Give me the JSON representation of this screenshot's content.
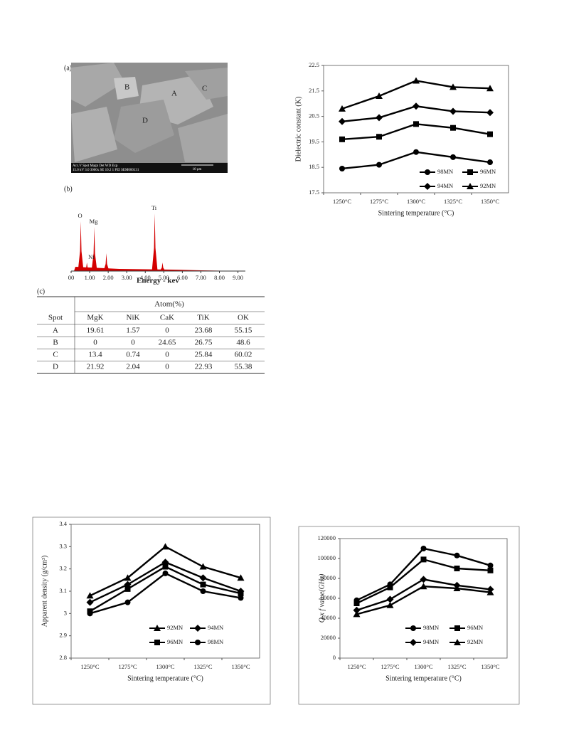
{
  "figure_labels": [
    "(a)",
    "(b)",
    "(c)"
  ],
  "sem_image": {
    "labels": [
      "A",
      "B",
      "C",
      "D"
    ],
    "info": [
      "Acc.V  Spot Magn   Det  WD  Exp",
      "15.0 kV 3.0  3000x   SE  10.2  1   FEI SEM000131"
    ],
    "scale_bar": "10 μm"
  },
  "table": {
    "group_header": "Atom(%)",
    "columns": [
      "Spot",
      "MgK",
      "NiK",
      "CaK",
      "TiK",
      "OK"
    ],
    "rows": [
      [
        "A",
        "19.61",
        "1.57",
        "0",
        "23.68",
        "55.15"
      ],
      [
        "B",
        "0",
        "0",
        "24.65",
        "26.75",
        "48.6"
      ],
      [
        "C",
        "13.4",
        "0.74",
        "0",
        "25.84",
        "60.02"
      ],
      [
        "D",
        "21.92",
        "2.04",
        "0",
        "22.93",
        "55.38"
      ]
    ]
  },
  "chart_data": [
    {
      "type": "spectrum",
      "xlabel": "Energy - kev",
      "color": "#d40000",
      "x": [
        0.52,
        0.85,
        1.25,
        1.9,
        4.51,
        4.93
      ],
      "values": [
        70,
        12,
        62,
        25,
        81,
        12
      ],
      "annotations": [
        {
          "text": "O",
          "x": 0.52
        },
        {
          "text": "Ni",
          "x": 0.85
        },
        {
          "text": "Mg",
          "x": 1.25
        },
        {
          "text": "Ti",
          "x": 4.51
        }
      ],
      "xlim": [
        0,
        9.4
      ],
      "xticks": [
        {
          "value": 0,
          "label": "00"
        },
        {
          "value": 1,
          "label": "1.00"
        },
        {
          "value": 2,
          "label": "2.00"
        },
        {
          "value": 3,
          "label": "3.00"
        },
        {
          "value": 4,
          "label": "4.00"
        },
        {
          "value": 5,
          "label": "5.00"
        },
        {
          "value": 6,
          "label": "6.00"
        },
        {
          "value": 7,
          "label": "7.00"
        },
        {
          "value": 8,
          "label": "8.00"
        },
        {
          "value": 9,
          "label": "9.00"
        }
      ]
    },
    {
      "type": "line",
      "xlabel": "Sintering temperature (°C)",
      "ylabel": "Dielectric constant (K)",
      "categories": [
        "1250°C",
        "1275°C",
        "1300°C",
        "1325°C",
        "1350°C"
      ],
      "series": [
        {
          "name": "98MN",
          "marker": "circle",
          "color": "#000000",
          "values": [
            18.45,
            18.6,
            19.1,
            18.9,
            18.7
          ]
        },
        {
          "name": "96MN",
          "marker": "square",
          "color": "#000000",
          "values": [
            19.6,
            19.7,
            20.2,
            20.05,
            19.8
          ]
        },
        {
          "name": "94MN",
          "marker": "diamond",
          "color": "#000000",
          "values": [
            20.3,
            20.45,
            20.9,
            20.7,
            20.65
          ]
        },
        {
          "name": "92MN",
          "marker": "triangle",
          "color": "#000000",
          "values": [
            20.8,
            21.3,
            21.9,
            21.65,
            21.6
          ]
        }
      ],
      "ylim": [
        17.5,
        22.5
      ],
      "yticks": [
        17.5,
        18.5,
        19.5,
        20.5,
        21.5,
        22.5
      ],
      "legend": "lower right"
    },
    {
      "type": "line",
      "xlabel": "Sintering temperature (°C)",
      "ylabel": "Apparent density (g/cm³)",
      "categories": [
        "1250°C",
        "1275°C",
        "1300°C",
        "1325°C",
        "1350°C"
      ],
      "series": [
        {
          "name": "92MN",
          "marker": "triangle",
          "color": "#000000",
          "values": [
            3.08,
            3.16,
            3.3,
            3.21,
            3.16
          ]
        },
        {
          "name": "94MN",
          "marker": "diamond",
          "color": "#000000",
          "values": [
            3.05,
            3.13,
            3.23,
            3.16,
            3.1
          ]
        },
        {
          "name": "96MN",
          "marker": "square",
          "color": "#000000",
          "values": [
            3.01,
            3.11,
            3.21,
            3.13,
            3.09
          ]
        },
        {
          "name": "98MN",
          "marker": "circle",
          "color": "#000000",
          "values": [
            3.0,
            3.05,
            3.18,
            3.1,
            3.07
          ]
        }
      ],
      "ylim": [
        2.8,
        3.4
      ],
      "yticks": [
        2.8,
        2.9,
        3,
        3.1,
        3.2,
        3.3,
        3.4
      ],
      "legend": "lower right"
    },
    {
      "type": "line",
      "xlabel": "Sintering temperature (°C)",
      "ylabel": "Q x f value(GHz)",
      "categories": [
        "1250°C",
        "1275°C",
        "1300°C",
        "1325°C",
        "1350°C"
      ],
      "series": [
        {
          "name": "98MN",
          "marker": "circle",
          "color": "#000000",
          "values": [
            58000,
            74000,
            110000,
            103000,
            93000
          ]
        },
        {
          "name": "96MN",
          "marker": "square",
          "color": "#000000",
          "values": [
            55000,
            71000,
            99000,
            90000,
            88000
          ]
        },
        {
          "name": "94MN",
          "marker": "diamond",
          "color": "#000000",
          "values": [
            48000,
            59000,
            79000,
            73000,
            69000
          ]
        },
        {
          "name": "92MN",
          "marker": "triangle",
          "color": "#000000",
          "values": [
            44000,
            53000,
            72000,
            70000,
            66000
          ]
        }
      ],
      "ylim": [
        0,
        120000
      ],
      "yticks": [
        0,
        20000,
        40000,
        60000,
        80000,
        100000,
        120000
      ],
      "legend": "lower right"
    }
  ]
}
